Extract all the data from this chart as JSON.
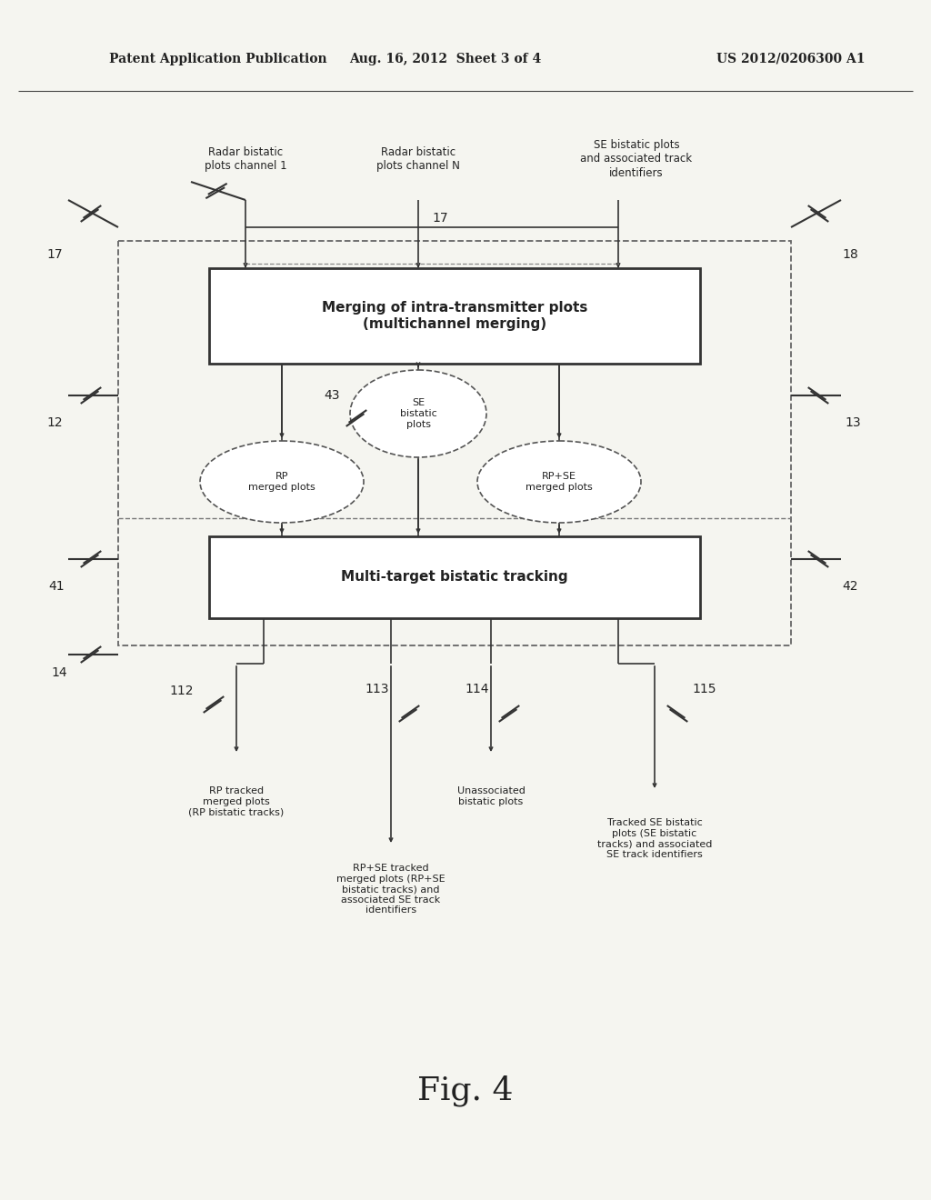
{
  "bg_color": "#f5f5f0",
  "header_left": "Patent Application Publication",
  "header_mid": "Aug. 16, 2012  Sheet 3 of 4",
  "header_right": "US 2012/0206300 A1",
  "fig_label": "Fig. 4",
  "in1_text": "Radar bistatic\nplots channel 1",
  "in2_text": "Radar bistatic\nplots channel N",
  "in3_text": "SE bistatic plots\nand associated track\nidentifiers",
  "box1_text": "Merging of intra-transmitter plots\n(multichannel merging)",
  "box2_text": "Multi-target bistatic tracking",
  "ell_se_text": "SE\nbistatic\nplots",
  "ell_rp_text": "RP\nmerged plots",
  "ell_rpse_text": "RP+SE\nmerged plots",
  "out1_text": "RP tracked\nmerged plots\n(RP bistatic tracks)",
  "out2_text": "RP+SE tracked\nmerged plots (RP+SE\nbistatic tracks) and\nassociated SE track\nidentifiers",
  "out3_text": "Unassociated\nbistatic plots",
  "out4_text": "Tracked SE bistatic\nplots (SE bistatic\ntracks) and associated\nSE track identifiers",
  "lbl_17a": "17",
  "lbl_17b": "17",
  "lbl_18": "18",
  "lbl_12": "12",
  "lbl_13": "13",
  "lbl_43": "43",
  "lbl_41": "41",
  "lbl_42": "42",
  "lbl_14": "14",
  "lbl_112": "112",
  "lbl_113": "113",
  "lbl_114": "114",
  "lbl_115": "115"
}
